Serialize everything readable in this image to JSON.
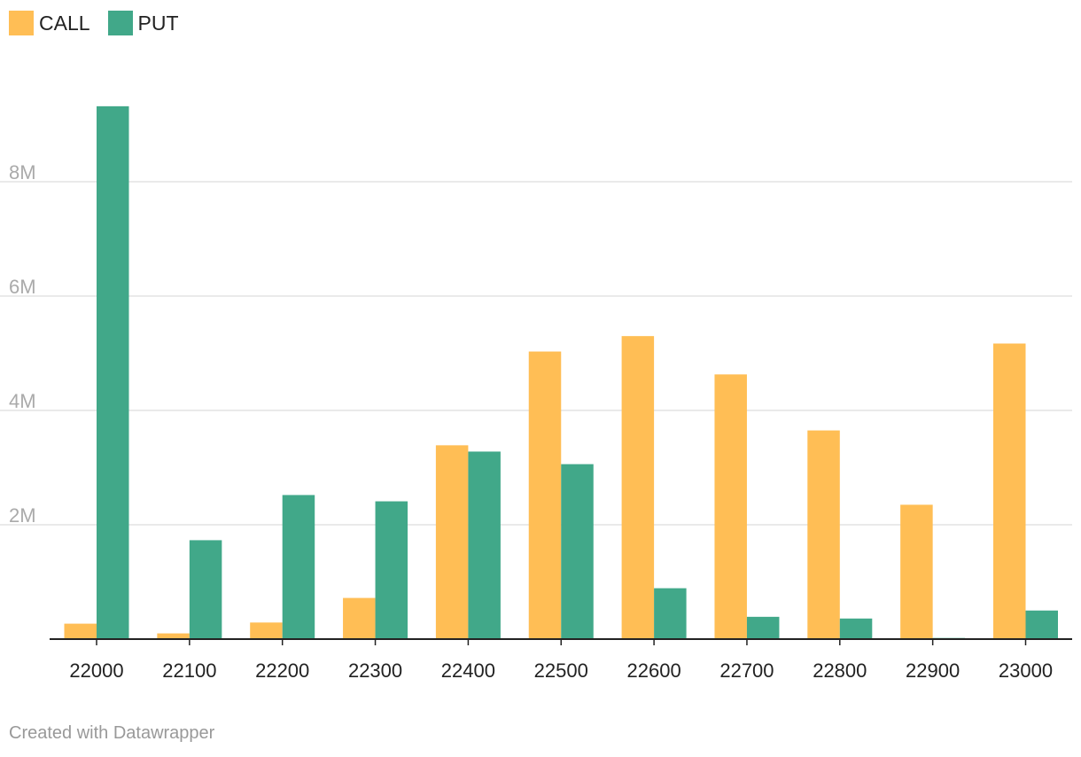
{
  "legend": {
    "items": [
      {
        "label": "CALL",
        "color": "#FFBE55"
      },
      {
        "label": "PUT",
        "color": "#41A889"
      }
    ]
  },
  "footer": {
    "credit": "Created with Datawrapper"
  },
  "chart_data": {
    "type": "bar",
    "categories": [
      "22000",
      "22100",
      "22200",
      "22300",
      "22400",
      "22500",
      "22600",
      "22700",
      "22800",
      "22900",
      "23000"
    ],
    "series": [
      {
        "name": "CALL",
        "color": "#FFBE55",
        "values": [
          270000,
          100000,
          290000,
          720000,
          3390000,
          5030000,
          5300000,
          4630000,
          3650000,
          2350000,
          5170000
        ]
      },
      {
        "name": "PUT",
        "color": "#41A889",
        "values": [
          9320000,
          1730000,
          2520000,
          2410000,
          3280000,
          3060000,
          890000,
          390000,
          360000,
          20000,
          500000
        ]
      }
    ],
    "y_ticks": [
      {
        "value": 2000000,
        "label": "2M"
      },
      {
        "value": 4000000,
        "label": "4M"
      },
      {
        "value": 6000000,
        "label": "6M"
      },
      {
        "value": 8000000,
        "label": "8M"
      }
    ],
    "grid": true,
    "legend_position": "top-left",
    "xlabel": "",
    "ylabel": ""
  }
}
